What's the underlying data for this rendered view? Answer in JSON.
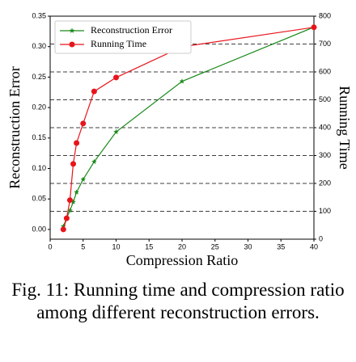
{
  "chart_data": {
    "type": "line",
    "x_label": "Compression Ratio",
    "y_label": "Reconstruction Error",
    "y2_label": "Running Time",
    "x": [
      2,
      2.5,
      3,
      3.5,
      4,
      5,
      6.67,
      10,
      20,
      40
    ],
    "series": [
      {
        "name": "Reconstruction Error",
        "color": "#1a8a1a",
        "marker": "star",
        "values": [
          0.005,
          0.019,
          0.031,
          0.045,
          0.061,
          0.082,
          0.111,
          0.16,
          0.243,
          0.332
        ]
      },
      {
        "name": "Running Time",
        "color": "#e8141b",
        "marker": "circle",
        "axis": "y2",
        "values": [
          35,
          75,
          140,
          270,
          345,
          415,
          530,
          580,
          690,
          760
        ]
      }
    ],
    "xlim": [
      0,
      40
    ],
    "xticks": [
      0,
      5,
      10,
      15,
      20,
      25,
      30,
      35,
      40
    ],
    "ylim": [
      -0.016,
      0.35
    ],
    "yticks": [
      {
        "value": 0,
        "label": "0.00"
      },
      {
        "value": 0.05,
        "label": "0.05"
      },
      {
        "value": 0.1,
        "label": "0.10"
      },
      {
        "value": 0.15,
        "label": "0.15"
      },
      {
        "value": 0.2,
        "label": "0.20"
      },
      {
        "value": 0.25,
        "label": "0.25"
      },
      {
        "value": 0.3,
        "label": "0.30"
      },
      {
        "value": 0.35,
        "label": "0.35"
      }
    ],
    "y2lim": [
      0,
      800
    ],
    "y2ticks": [
      0,
      100,
      200,
      300,
      400,
      500,
      600,
      700,
      800
    ],
    "y2grid": true,
    "legend": "upper left"
  },
  "caption": "Fig. 11: Running time and compression ratio among different reconstruction errors."
}
